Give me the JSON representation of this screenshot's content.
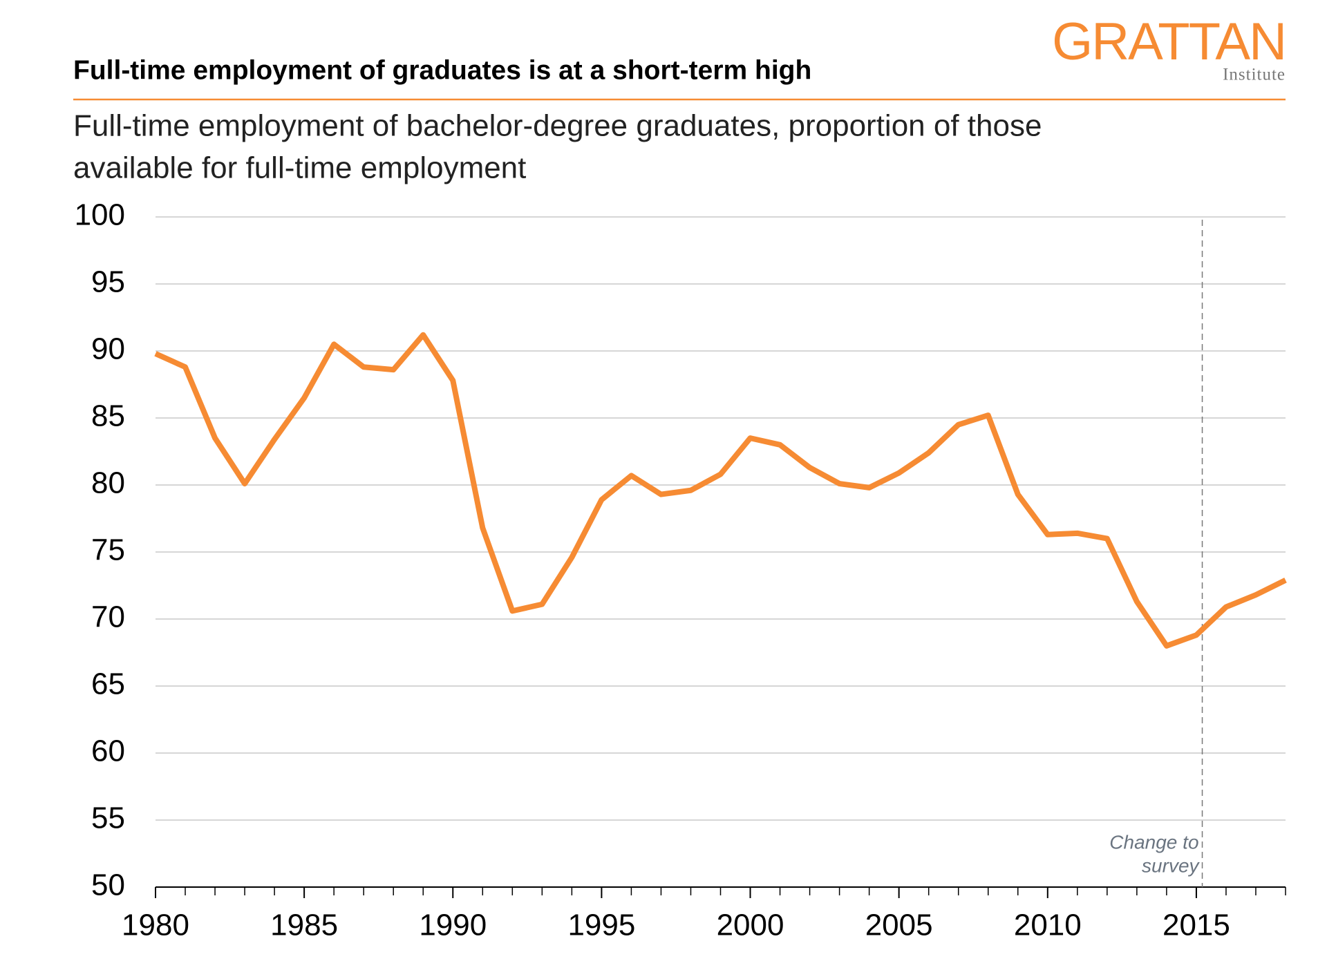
{
  "logo": {
    "name": "GRATTAN",
    "sub": "Institute"
  },
  "chart_data": {
    "type": "line",
    "title": "Full-time employment of graduates is at a short-term high",
    "subtitle": [
      "Full-time employment of bachelor-degree graduates, proportion of those",
      "available for full-time employment"
    ],
    "x": [
      1980,
      1981,
      1982,
      1983,
      1984,
      1985,
      1986,
      1987,
      1988,
      1989,
      1990,
      1991,
      1992,
      1993,
      1994,
      1995,
      1996,
      1997,
      1998,
      1999,
      2000,
      2001,
      2002,
      2003,
      2004,
      2005,
      2006,
      2007,
      2008,
      2009,
      2010,
      2011,
      2012,
      2013,
      2014,
      2015,
      2016,
      2017,
      2018
    ],
    "series": [
      {
        "color": "#f68b33",
        "values": [
          89.8,
          88.8,
          83.5,
          80.1,
          83.4,
          86.5,
          90.5,
          88.8,
          88.6,
          91.2,
          87.8,
          76.8,
          70.6,
          71.1,
          74.6,
          78.9,
          80.7,
          79.3,
          79.6,
          80.8,
          83.5,
          83.0,
          81.3,
          80.1,
          79.8,
          80.9,
          82.4,
          84.5,
          85.2,
          79.3,
          76.3,
          76.4,
          76.0,
          71.3,
          68.0,
          68.8,
          70.9,
          71.8,
          72.9
        ]
      }
    ],
    "xlim": [
      1980,
      2018
    ],
    "xticks": [
      1980,
      1985,
      1990,
      1995,
      2000,
      2005,
      2010,
      2015
    ],
    "ylim": [
      50,
      100
    ],
    "yticks": [
      50,
      55,
      60,
      65,
      70,
      75,
      80,
      85,
      90,
      95,
      100
    ],
    "grid": true,
    "annotation": {
      "lines": [
        "Change to",
        "survey"
      ],
      "x": 2015.2
    }
  }
}
